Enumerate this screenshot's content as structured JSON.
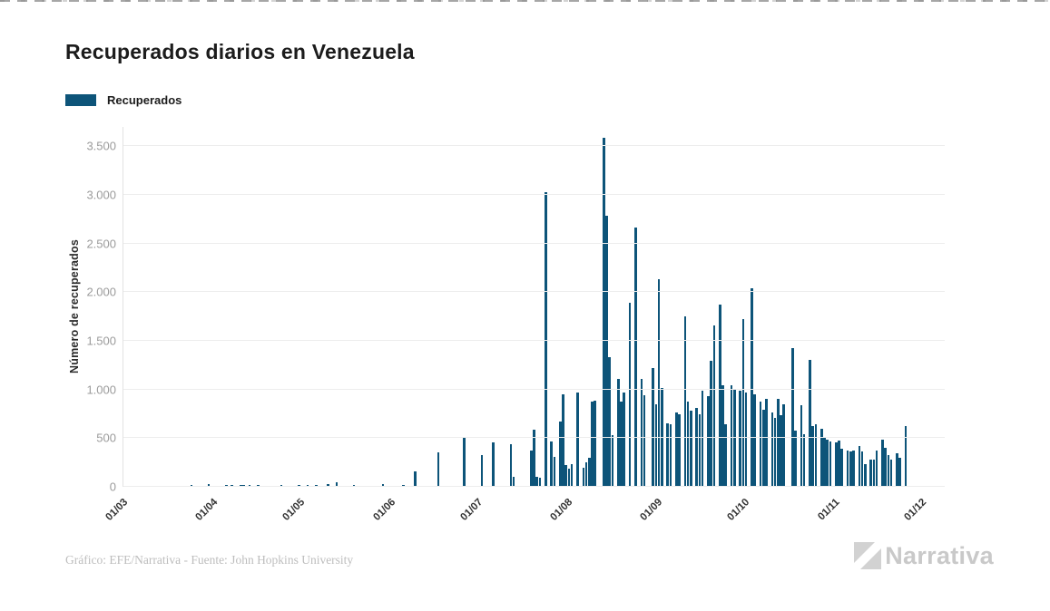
{
  "header": {
    "title": "Recuperados diarios en Venezuela"
  },
  "legend": {
    "label": "Recuperados",
    "swatch_color": "#0d5479"
  },
  "footer": {
    "credit": "Gráfico: EFE/Narrativa - Fuente: John Hopkins University",
    "logo_text": "Narrativa",
    "logo_color": "#c9c9c9"
  },
  "chart_data": {
    "type": "bar",
    "title": "Recuperados diarios en Venezuela",
    "series_name": "Recuperados",
    "xlabel": "",
    "ylabel": "Número de recuperados",
    "bar_color": "#0d5479",
    "grid": "horizontal",
    "legend_position": "top-left",
    "ylim": [
      0,
      3700
    ],
    "y_ticks": [
      "0",
      "500",
      "1.000",
      "1.500",
      "2.000",
      "2.500",
      "3.000",
      "3.500"
    ],
    "y_tick_values": [
      0,
      500,
      1000,
      1500,
      2000,
      2500,
      3000,
      3500
    ],
    "x_ticks": [
      {
        "label": "01/03",
        "day": 0
      },
      {
        "label": "01/04",
        "day": 31
      },
      {
        "label": "01/05",
        "day": 61
      },
      {
        "label": "01/06",
        "day": 92
      },
      {
        "label": "01/07",
        "day": 122
      },
      {
        "label": "01/08",
        "day": 153
      },
      {
        "label": "01/09",
        "day": 184
      },
      {
        "label": "01/10",
        "day": 214
      },
      {
        "label": "01/11",
        "day": 245
      },
      {
        "label": "01/12",
        "day": 275
      }
    ],
    "x_start_label": "01/03",
    "x_end_label": "01/12",
    "values": [
      null,
      null,
      null,
      null,
      null,
      null,
      null,
      null,
      null,
      null,
      0,
      0,
      0,
      0,
      0,
      0,
      0,
      0,
      0,
      0,
      0,
      0,
      0,
      22,
      0,
      0,
      0,
      0,
      0,
      25,
      0,
      0,
      0,
      0,
      0,
      16,
      0,
      19,
      0,
      0,
      22,
      22,
      0,
      16,
      0,
      0,
      19,
      0,
      0,
      0,
      0,
      12,
      0,
      0,
      19,
      0,
      12,
      0,
      0,
      0,
      19,
      0,
      0,
      16,
      0,
      0,
      22,
      0,
      0,
      0,
      25,
      0,
      0,
      47,
      0,
      0,
      0,
      0,
      0,
      16,
      0,
      0,
      0,
      0,
      0,
      0,
      0,
      0,
      0,
      25,
      0,
      0,
      0,
      0,
      0,
      0,
      16,
      0,
      0,
      0,
      160,
      0,
      0,
      0,
      0,
      0,
      0,
      0,
      350,
      0,
      0,
      0,
      0,
      0,
      0,
      0,
      0,
      500,
      0,
      0,
      0,
      0,
      0,
      330,
      0,
      0,
      0,
      460,
      0,
      0,
      0,
      0,
      0,
      440,
      100,
      0,
      0,
      0,
      0,
      0,
      375,
      590,
      100,
      90,
      0,
      3025,
      0,
      470,
      310,
      0,
      670,
      955,
      220,
      190,
      230,
      0,
      970,
      0,
      200,
      250,
      300,
      875,
      890,
      0,
      0,
      3590,
      2790,
      1330,
      530,
      0,
      1110,
      875,
      970,
      0,
      1890,
      0,
      2670,
      0,
      1110,
      940,
      0,
      0,
      1220,
      845,
      2130,
      1015,
      0,
      655,
      640,
      0,
      765,
      750,
      0,
      1750,
      875,
      780,
      0,
      810,
      750,
      985,
      0,
      935,
      1300,
      1655,
      0,
      1875,
      1045,
      640,
      0,
      1045,
      1000,
      0,
      985,
      1720,
      970,
      0,
      2045,
      955,
      0,
      875,
      795,
      905,
      0,
      765,
      705,
      905,
      735,
      850,
      0,
      0,
      1430,
      580,
      0,
      840,
      545,
      0,
      1305,
      625,
      640,
      0,
      595,
      515,
      485,
      470,
      0,
      455,
      475,
      390,
      0,
      375,
      360,
      375,
      0,
      415,
      360,
      235,
      0,
      280,
      280,
      375,
      0,
      485,
      405,
      330,
      280,
      0,
      345,
      295,
      0,
      625,
      null,
      null,
      null,
      null,
      null,
      null
    ]
  }
}
